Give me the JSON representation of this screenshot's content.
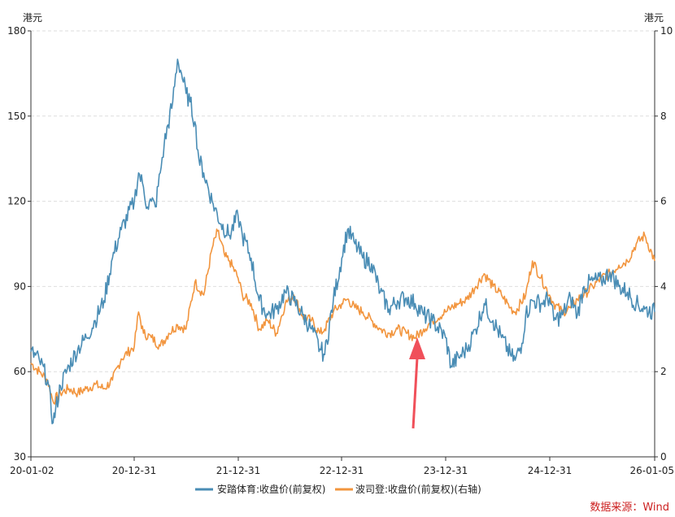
{
  "chart_data": {
    "type": "line",
    "unit_left": "港元",
    "unit_right": "港元",
    "x_tick_labels": [
      "20-01-02",
      "20-12-31",
      "21-12-31",
      "22-12-31",
      "23-12-31",
      "24-12-31",
      "26-01-05"
    ],
    "y_left": {
      "ticks": [
        "30",
        "60",
        "90",
        "120",
        "150",
        "180"
      ],
      "lim": [
        30,
        180
      ]
    },
    "y_right": {
      "ticks": [
        "0",
        "2",
        "4",
        "6",
        "8",
        "10"
      ],
      "lim": [
        0,
        10
      ]
    },
    "grid": "horizontal dashed",
    "legend_position": "bottom-center",
    "source": "数据来源：Wind",
    "annotation": "red arrow pointing up at the 2023-08 low",
    "series": [
      {
        "name": "安踏体育:收盘价(前复权)",
        "axis": "left",
        "color": "#4a8db5",
        "points": [
          [
            "2020-01-02",
            67
          ],
          [
            "2020-02-01",
            64
          ],
          [
            "2020-03-01",
            57
          ],
          [
            "2020-03-20",
            42
          ],
          [
            "2020-04-15",
            55
          ],
          [
            "2020-05-15",
            62
          ],
          [
            "2020-06-15",
            68
          ],
          [
            "2020-07-15",
            72
          ],
          [
            "2020-08-15",
            78
          ],
          [
            "2020-09-15",
            85
          ],
          [
            "2020-10-15",
            100
          ],
          [
            "2020-11-15",
            110
          ],
          [
            "2020-12-31",
            120
          ],
          [
            "2021-01-15",
            130
          ],
          [
            "2021-02-01",
            125
          ],
          [
            "2021-02-15",
            118
          ],
          [
            "2021-03-01",
            120
          ],
          [
            "2021-03-15",
            118
          ],
          [
            "2021-04-01",
            130
          ],
          [
            "2021-04-15",
            140
          ],
          [
            "2021-05-15",
            155
          ],
          [
            "2021-06-01",
            170
          ],
          [
            "2021-06-15",
            165
          ],
          [
            "2021-07-01",
            158
          ],
          [
            "2021-07-15",
            155
          ],
          [
            "2021-08-01",
            148
          ],
          [
            "2021-08-15",
            135
          ],
          [
            "2021-09-01",
            130
          ],
          [
            "2021-10-01",
            120
          ],
          [
            "2021-11-01",
            112
          ],
          [
            "2021-12-01",
            108
          ],
          [
            "2021-12-31",
            115
          ],
          [
            "2022-01-15",
            108
          ],
          [
            "2022-02-15",
            100
          ],
          [
            "2022-03-15",
            85
          ],
          [
            "2022-04-15",
            80
          ],
          [
            "2022-05-15",
            82
          ],
          [
            "2022-06-15",
            88
          ],
          [
            "2022-07-15",
            85
          ],
          [
            "2022-08-15",
            80
          ],
          [
            "2022-09-15",
            75
          ],
          [
            "2022-10-15",
            68
          ],
          [
            "2022-11-01",
            66
          ],
          [
            "2022-12-01",
            85
          ],
          [
            "2022-12-31",
            100
          ],
          [
            "2023-01-20",
            110
          ],
          [
            "2023-02-15",
            105
          ],
          [
            "2023-03-15",
            100
          ],
          [
            "2023-04-15",
            98
          ],
          [
            "2023-05-15",
            88
          ],
          [
            "2023-06-15",
            82
          ],
          [
            "2023-07-15",
            85
          ],
          [
            "2023-08-15",
            86
          ],
          [
            "2023-09-15",
            84
          ],
          [
            "2023-10-15",
            80
          ],
          [
            "2023-11-15",
            78
          ],
          [
            "2023-12-31",
            72
          ],
          [
            "2024-01-20",
            62
          ],
          [
            "2024-02-15",
            65
          ],
          [
            "2024-03-15",
            68
          ],
          [
            "2024-04-15",
            75
          ],
          [
            "2024-05-15",
            84
          ],
          [
            "2024-06-15",
            78
          ],
          [
            "2024-07-15",
            72
          ],
          [
            "2024-08-15",
            66
          ],
          [
            "2024-09-01",
            64
          ],
          [
            "2024-09-25",
            70
          ],
          [
            "2024-10-08",
            80
          ],
          [
            "2024-11-01",
            85
          ],
          [
            "2024-12-01",
            84
          ],
          [
            "2024-12-31",
            86
          ],
          [
            "2025-01-15",
            78
          ],
          [
            "2025-02-15",
            80
          ],
          [
            "2025-03-15",
            86
          ],
          [
            "2025-04-08",
            80
          ],
          [
            "2025-05-01",
            90
          ],
          [
            "2025-06-01",
            92
          ],
          [
            "2025-07-01",
            92
          ],
          [
            "2025-08-01",
            95
          ],
          [
            "2025-09-01",
            90
          ],
          [
            "2025-10-01",
            88
          ],
          [
            "2025-11-01",
            84
          ],
          [
            "2025-12-01",
            82
          ],
          [
            "2026-01-05",
            81
          ]
        ]
      },
      {
        "name": "波司登:收盘价(前复权)(右轴)",
        "axis": "right",
        "color": "#f2953e",
        "points": [
          [
            "2020-01-02",
            2.2
          ],
          [
            "2020-02-01",
            2.0
          ],
          [
            "2020-03-01",
            1.8
          ],
          [
            "2020-03-20",
            1.3
          ],
          [
            "2020-04-15",
            1.5
          ],
          [
            "2020-05-15",
            1.6
          ],
          [
            "2020-06-15",
            1.5
          ],
          [
            "2020-07-15",
            1.6
          ],
          [
            "2020-08-15",
            1.7
          ],
          [
            "2020-09-15",
            1.6
          ],
          [
            "2020-10-15",
            1.8
          ],
          [
            "2020-11-15",
            2.3
          ],
          [
            "2020-12-31",
            2.6
          ],
          [
            "2021-01-15",
            3.4
          ],
          [
            "2021-02-01",
            2.9
          ],
          [
            "2021-03-01",
            2.8
          ],
          [
            "2021-04-01",
            2.6
          ],
          [
            "2021-05-01",
            2.9
          ],
          [
            "2021-06-01",
            3.1
          ],
          [
            "2021-07-01",
            3.0
          ],
          [
            "2021-08-01",
            4.1
          ],
          [
            "2021-09-01",
            3.8
          ],
          [
            "2021-10-01",
            4.9
          ],
          [
            "2021-10-20",
            5.3
          ],
          [
            "2021-11-15",
            4.7
          ],
          [
            "2021-12-01",
            4.6
          ],
          [
            "2021-12-31",
            4.2
          ],
          [
            "2022-01-15",
            3.8
          ],
          [
            "2022-02-15",
            3.6
          ],
          [
            "2022-03-15",
            3.0
          ],
          [
            "2022-04-15",
            3.2
          ],
          [
            "2022-05-15",
            2.9
          ],
          [
            "2022-06-15",
            3.6
          ],
          [
            "2022-07-15",
            3.8
          ],
          [
            "2022-08-15",
            3.3
          ],
          [
            "2022-09-15",
            3.2
          ],
          [
            "2022-10-15",
            2.9
          ],
          [
            "2022-11-01",
            3.0
          ],
          [
            "2022-12-01",
            3.4
          ],
          [
            "2022-12-31",
            3.6
          ],
          [
            "2023-01-20",
            3.7
          ],
          [
            "2023-02-15",
            3.5
          ],
          [
            "2023-03-15",
            3.4
          ],
          [
            "2023-04-15",
            3.2
          ],
          [
            "2023-05-15",
            3.0
          ],
          [
            "2023-06-15",
            2.9
          ],
          [
            "2023-07-15",
            3.0
          ],
          [
            "2023-08-15",
            2.9
          ],
          [
            "2023-09-15",
            2.8
          ],
          [
            "2023-10-15",
            3.0
          ],
          [
            "2023-11-15",
            3.2
          ],
          [
            "2023-12-31",
            3.4
          ],
          [
            "2024-01-20",
            3.5
          ],
          [
            "2024-02-15",
            3.6
          ],
          [
            "2024-03-15",
            3.7
          ],
          [
            "2024-04-15",
            4.0
          ],
          [
            "2024-05-15",
            4.3
          ],
          [
            "2024-06-15",
            4.0
          ],
          [
            "2024-07-15",
            3.8
          ],
          [
            "2024-08-15",
            3.5
          ],
          [
            "2024-09-01",
            3.4
          ],
          [
            "2024-10-08",
            3.8
          ],
          [
            "2024-11-01",
            4.6
          ],
          [
            "2024-12-01",
            4.2
          ],
          [
            "2024-12-31",
            3.8
          ],
          [
            "2025-01-15",
            3.6
          ],
          [
            "2025-02-15",
            3.4
          ],
          [
            "2025-03-15",
            3.5
          ],
          [
            "2025-04-08",
            3.7
          ],
          [
            "2025-05-01",
            3.8
          ],
          [
            "2025-06-01",
            4.0
          ],
          [
            "2025-07-01",
            4.2
          ],
          [
            "2025-08-01",
            4.3
          ],
          [
            "2025-09-01",
            4.5
          ],
          [
            "2025-10-01",
            4.6
          ],
          [
            "2025-11-01",
            5.0
          ],
          [
            "2025-12-01",
            5.2
          ],
          [
            "2026-01-05",
            4.6
          ]
        ]
      }
    ]
  }
}
